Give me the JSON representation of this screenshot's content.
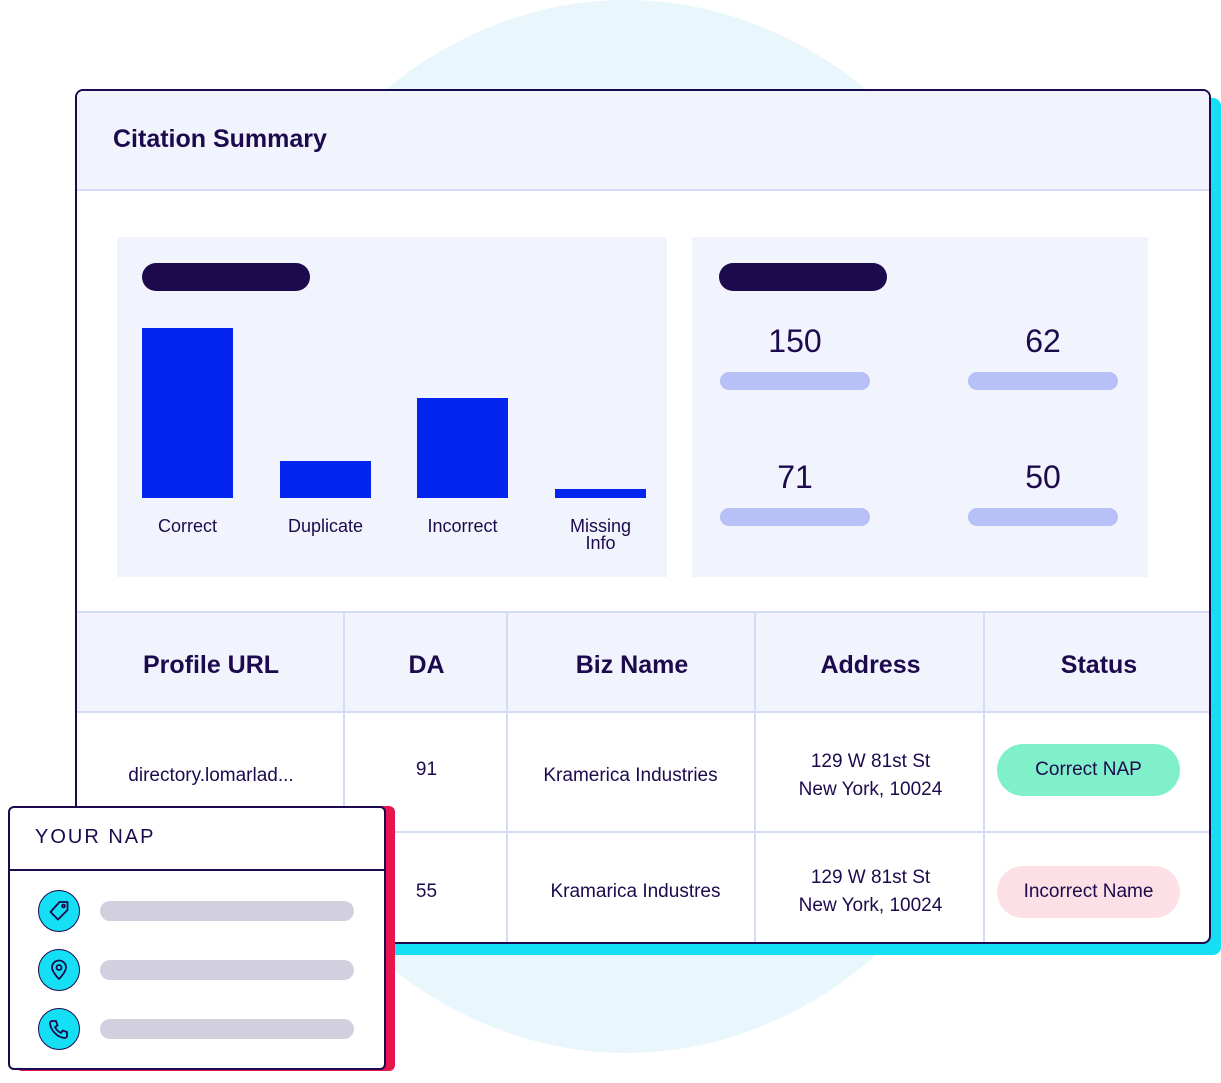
{
  "card": {
    "title": "Citation Summary"
  },
  "chart_data": {
    "type": "bar",
    "categories": [
      "Correct",
      "Duplicate",
      "Incorrect",
      "Missing Info"
    ],
    "values": [
      150,
      33,
      88,
      8
    ],
    "ylim": [
      0,
      150
    ],
    "grid": false,
    "bar_color": "#0425f0"
  },
  "stats": [
    {
      "value": "150"
    },
    {
      "value": "62"
    },
    {
      "value": "71"
    },
    {
      "value": "50"
    }
  ],
  "table": {
    "headers": [
      "Profile URL",
      "DA",
      "Biz Name",
      "Address",
      "Status"
    ],
    "rows": [
      {
        "url": "directory.lomarlad...",
        "da": "91",
        "name": "Kramerica Industries",
        "address_line1": "129 W 81st St",
        "address_line2": "New York, 10024",
        "status": "Correct NAP"
      },
      {
        "url": "",
        "da": "55",
        "name": "Kramarica Industres",
        "address_line1": "129 W 81st St",
        "address_line2": "New York, 10024",
        "status": "Incorrect Name"
      }
    ]
  },
  "nap": {
    "title": "YOUR NAP",
    "items": [
      {
        "icon": "tag-icon"
      },
      {
        "icon": "location-pin-icon"
      },
      {
        "icon": "phone-icon"
      }
    ]
  },
  "colors": {
    "navy": "#1c0a4d",
    "accent_blue": "#0425f0",
    "cyan": "#15dff5",
    "red": "#e8164e",
    "status_green": "#7ff0c9",
    "status_pink": "#fde0e5"
  }
}
